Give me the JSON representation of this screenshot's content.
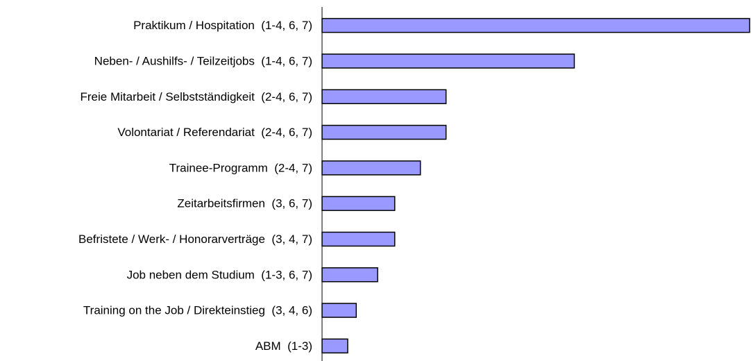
{
  "chart_data": {
    "type": "bar",
    "orientation": "horizontal",
    "categories": [
      "Praktikum / Hospitation  (1-4, 6, 7)",
      "Neben- / Aushilfs- / Teilzeitjobs  (1-4, 6, 7)",
      "Freie Mitarbeit / Selbstständigkeit  (2-4, 6, 7)",
      "Volontariat / Referendariat  (2-4, 6, 7)",
      "Trainee-Programm  (2-4, 7)",
      "Zeitarbeitsfirmen  (3, 6, 7)",
      "Befristete / Werk- / Honorarverträge  (3, 4, 7)",
      "Job neben dem Studium  (1-3, 6, 7)",
      "Training on the Job / Direkteinstieg  (3, 4, 6)",
      "ABM  (1-3)"
    ],
    "values": [
      100,
      59,
      29,
      29,
      23,
      17,
      17,
      13,
      8,
      6
    ],
    "xlim": [
      0,
      100
    ],
    "grid": false,
    "legend": "none",
    "bar_color": "#9999ff",
    "bar_edge_color": "#000000"
  }
}
